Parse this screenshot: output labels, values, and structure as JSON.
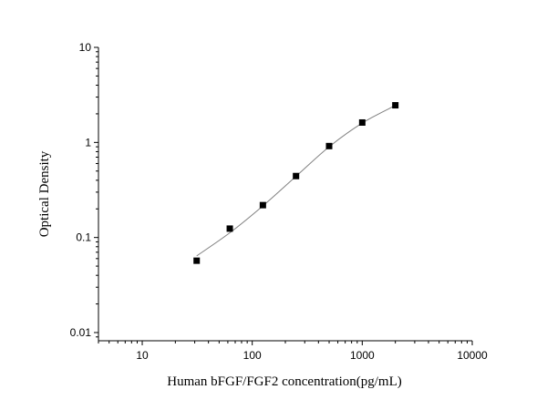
{
  "chart_data": {
    "type": "scatter",
    "title": "",
    "xlabel": "Human bFGF/FGF2 concentration(pg/mL)",
    "ylabel": "Optical Density",
    "x_scale": "log",
    "y_scale": "log",
    "xlim": [
      4,
      10000
    ],
    "ylim": [
      0.0082,
      10
    ],
    "x_ticks": [
      10,
      100,
      1000,
      10000
    ],
    "x_tick_labels": [
      "10",
      "100",
      "1000",
      "10000"
    ],
    "y_ticks": [
      0.01,
      0.1,
      1,
      10
    ],
    "y_tick_labels": [
      "0.01",
      "0.1",
      "1",
      "10"
    ],
    "grid": false,
    "series": [
      {
        "marker": "square",
        "color": "#000000",
        "x": [
          31.25,
          62.5,
          125,
          250,
          500,
          1000,
          2000
        ],
        "y": [
          0.057,
          0.124,
          0.219,
          0.443,
          0.916,
          1.62,
          2.46
        ]
      }
    ],
    "fit_curve": {
      "color": "#808080",
      "x": [
        31.25,
        62.5,
        125,
        250,
        500,
        1000,
        2000
      ],
      "y": [
        0.064,
        0.112,
        0.215,
        0.44,
        0.9,
        1.6,
        2.45
      ]
    }
  }
}
